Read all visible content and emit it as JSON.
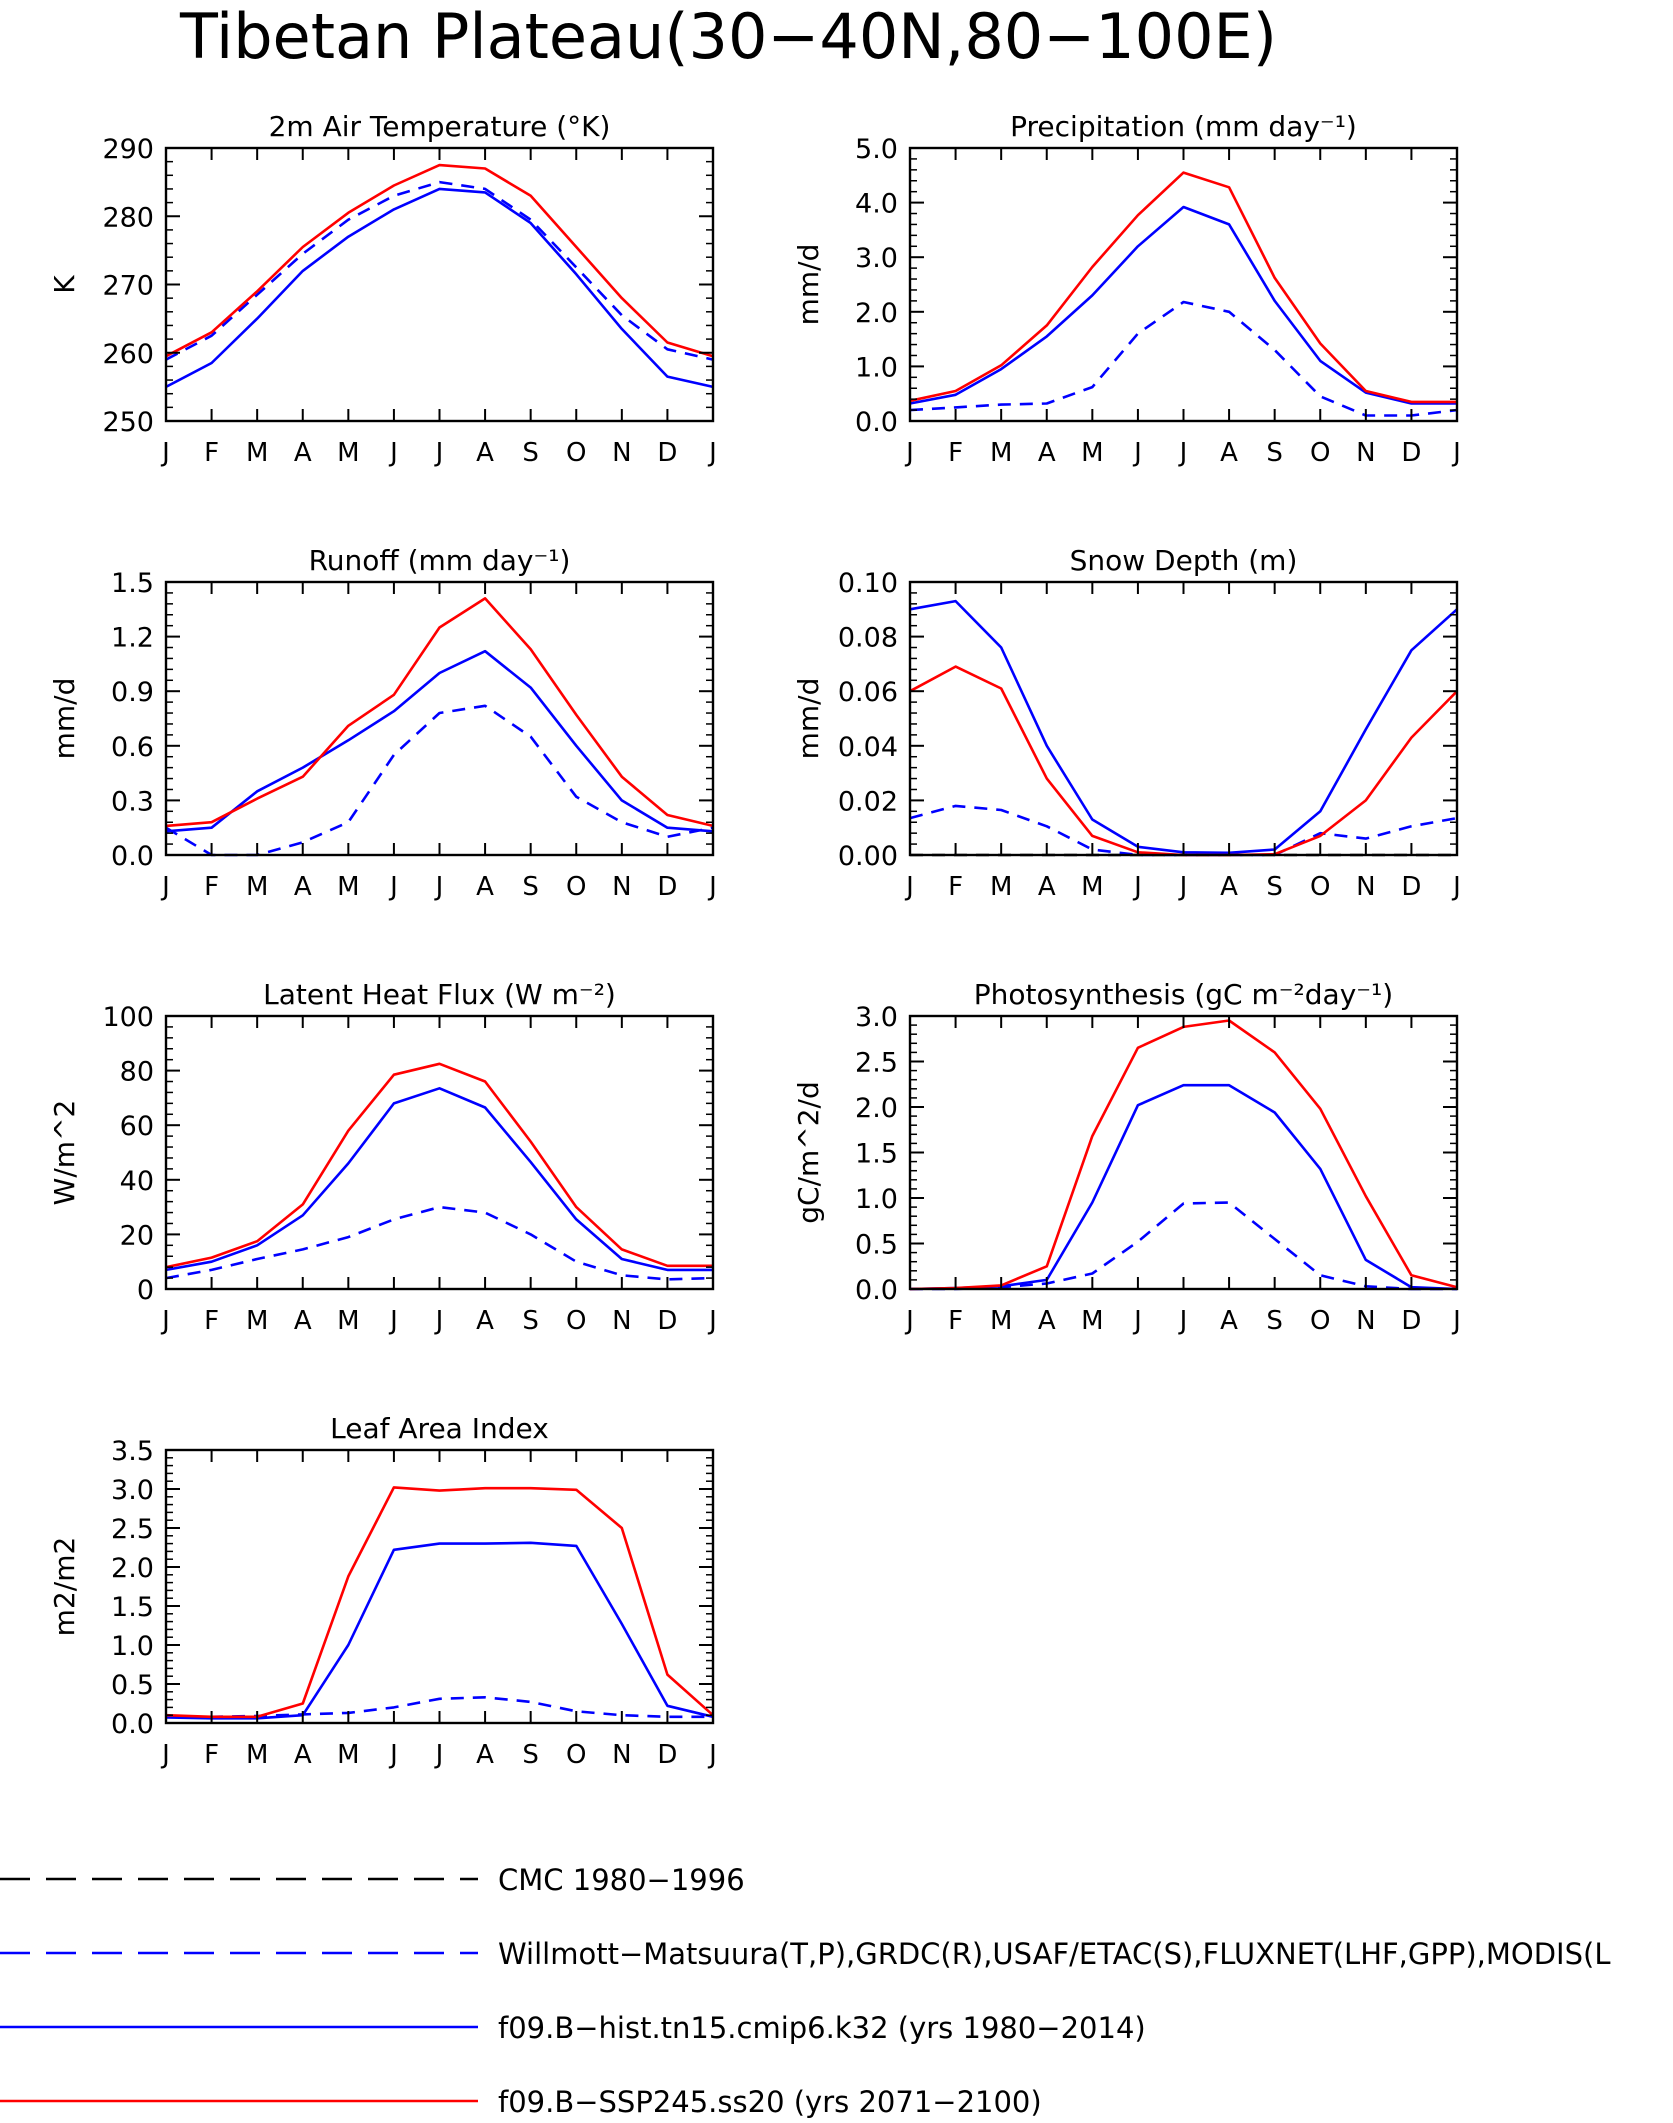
{
  "page": {
    "title": "Tibetan Plateau(30−40N,80−100E)"
  },
  "colors": {
    "obs": "#0000ff",
    "hist": "#0000ff",
    "ssp": "#ff0000",
    "cmc": "#000000"
  },
  "months": [
    "J",
    "F",
    "M",
    "A",
    "M",
    "J",
    "J",
    "A",
    "S",
    "O",
    "N",
    "D",
    "J"
  ],
  "legend": [
    {
      "label": "CMC 1980−1996",
      "color": "#000000",
      "dash": true
    },
    {
      "label": "Willmott−Matsuura(T,P),GRDC(R),USAF/ETAC(S),FLUXNET(LHF,GPP),MODIS(L",
      "color": "#0000ff",
      "dash": true
    },
    {
      "label": "f09.B−hist.tn15.cmip6.k32 (yrs 1980−2014)",
      "color": "#0000ff",
      "dash": false
    },
    {
      "label": "f09.B−SSP245.ss20 (yrs 2071−2100)",
      "color": "#ff0000",
      "dash": false
    }
  ],
  "chart_data": [
    {
      "type": "line",
      "title": "2m Air Temperature (°K)",
      "ylabel": "K",
      "ylim": [
        250,
        290
      ],
      "yticks": [
        "250",
        "260",
        "270",
        "280",
        "290"
      ],
      "categories": [
        "J",
        "F",
        "M",
        "A",
        "M",
        "J",
        "J",
        "A",
        "S",
        "O",
        "N",
        "D",
        "J"
      ],
      "series": [
        {
          "name": "Willmott−Matsuura(T,P),GRDC(R),USAF/ETAC(S),FLUXNET(LHF,GPP),MODIS(L",
          "style": "dashed",
          "color": "#0000ff",
          "values": [
            259,
            262.5,
            268.5,
            274.5,
            279.5,
            283,
            285,
            284,
            279.5,
            272.5,
            265.5,
            260.5,
            259
          ]
        },
        {
          "name": "f09.B−hist.tn15.cmip6.k32 (yrs 1980−2014)",
          "style": "solid",
          "color": "#0000ff",
          "values": [
            255,
            258.5,
            265,
            272,
            277,
            281,
            284,
            283.5,
            279,
            271.5,
            263.5,
            256.5,
            255
          ]
        },
        {
          "name": "f09.B−SSP245.ss20 (yrs 2071−2100)",
          "style": "solid",
          "color": "#ff0000",
          "values": [
            259.5,
            263,
            269,
            275.5,
            280.5,
            284.5,
            287.5,
            287,
            283,
            275.5,
            268,
            261.5,
            259.5
          ]
        }
      ]
    },
    {
      "type": "line",
      "title": "Precipitation (mm day⁻¹)",
      "ylabel": "mm/d",
      "ylim": [
        0,
        5
      ],
      "yticks": [
        "0.0",
        "1.0",
        "2.0",
        "3.0",
        "4.0",
        "5.0"
      ],
      "categories": [
        "J",
        "F",
        "M",
        "A",
        "M",
        "J",
        "J",
        "A",
        "S",
        "O",
        "N",
        "D",
        "J"
      ],
      "series": [
        {
          "name": "Willmott−Matsuura(T,P),GRDC(R),USAF/ETAC(S),FLUXNET(LHF,GPP),MODIS(L",
          "style": "dashed",
          "color": "#0000ff",
          "values": [
            0.2,
            0.25,
            0.3,
            0.32,
            0.62,
            1.6,
            2.18,
            2.0,
            1.3,
            0.45,
            0.1,
            0.1,
            0.2
          ]
        },
        {
          "name": "f09.B−hist.tn15.cmip6.k32 (yrs 1980−2014)",
          "style": "solid",
          "color": "#0000ff",
          "values": [
            0.32,
            0.48,
            0.95,
            1.55,
            2.3,
            3.2,
            3.92,
            3.6,
            2.2,
            1.1,
            0.52,
            0.32,
            0.32
          ]
        },
        {
          "name": "f09.B−SSP245.ss20 (yrs 2071−2100)",
          "style": "solid",
          "color": "#ff0000",
          "values": [
            0.37,
            0.55,
            1.02,
            1.75,
            2.82,
            3.77,
            4.55,
            4.28,
            2.62,
            1.42,
            0.55,
            0.35,
            0.35
          ]
        }
      ]
    },
    {
      "type": "line",
      "title": "Runoff (mm day⁻¹)",
      "ylabel": "mm/d",
      "ylim": [
        0,
        1.5
      ],
      "yticks": [
        "0.0",
        "0.3",
        "0.6",
        "0.9",
        "1.2",
        "1.5"
      ],
      "categories": [
        "J",
        "F",
        "M",
        "A",
        "M",
        "J",
        "J",
        "A",
        "S",
        "O",
        "N",
        "D",
        "J"
      ],
      "series": [
        {
          "name": "Willmott−Matsuura(T,P),GRDC(R),USAF/ETAC(S),FLUXNET(LHF,GPP),MODIS(L",
          "style": "dashed",
          "color": "#0000ff",
          "values": [
            0.15,
            0.0,
            0.0,
            0.07,
            0.18,
            0.55,
            0.78,
            0.82,
            0.65,
            0.32,
            0.18,
            0.1,
            0.15
          ]
        },
        {
          "name": "f09.B−hist.tn15.cmip6.k32 (yrs 1980−2014)",
          "style": "solid",
          "color": "#0000ff",
          "values": [
            0.13,
            0.15,
            0.35,
            0.48,
            0.63,
            0.79,
            1.0,
            1.12,
            0.92,
            0.6,
            0.3,
            0.15,
            0.13
          ]
        },
        {
          "name": "f09.B−SSP245.ss20 (yrs 2071−2100)",
          "style": "solid",
          "color": "#ff0000",
          "values": [
            0.16,
            0.18,
            0.31,
            0.43,
            0.71,
            0.88,
            1.25,
            1.41,
            1.13,
            0.77,
            0.43,
            0.22,
            0.16
          ]
        }
      ]
    },
    {
      "type": "line",
      "title": "Snow Depth (m)",
      "ylabel": "mm/d",
      "ylim": [
        0,
        0.1
      ],
      "yticks": [
        "0.00",
        "0.02",
        "0.04",
        "0.06",
        "0.08",
        "0.10"
      ],
      "categories": [
        "J",
        "F",
        "M",
        "A",
        "M",
        "J",
        "J",
        "A",
        "S",
        "O",
        "N",
        "D",
        "J"
      ],
      "series": [
        {
          "name": "CMC 1980−1996",
          "style": "dashed",
          "color": "#000000",
          "values": [
            0,
            0,
            0,
            0,
            0,
            0,
            0,
            0,
            0,
            0,
            0,
            0,
            0
          ]
        },
        {
          "name": "Willmott−Matsuura(T,P),GRDC(R),USAF/ETAC(S),FLUXNET(LHF,GPP),MODIS(L",
          "style": "dashed",
          "color": "#0000ff",
          "values": [
            0.0135,
            0.018,
            0.0165,
            0.0105,
            0.002,
            0.0,
            0.0,
            0.0,
            0.0,
            0.008,
            0.006,
            0.0105,
            0.0135
          ]
        },
        {
          "name": "f09.B−hist.tn15.cmip6.k32 (yrs 1980−2014)",
          "style": "solid",
          "color": "#0000ff",
          "values": [
            0.09,
            0.093,
            0.076,
            0.04,
            0.013,
            0.003,
            0.001,
            0.0008,
            0.002,
            0.016,
            0.046,
            0.075,
            0.09
          ]
        },
        {
          "name": "f09.B−SSP245.ss20 (yrs 2071−2100)",
          "style": "solid",
          "color": "#ff0000",
          "values": [
            0.06,
            0.069,
            0.061,
            0.028,
            0.007,
            0.001,
            0.0,
            0.0,
            0.0003,
            0.007,
            0.02,
            0.043,
            0.06
          ]
        }
      ]
    },
    {
      "type": "line",
      "title": "Latent Heat Flux (W m⁻²)",
      "ylabel": "W/m^2",
      "ylim": [
        0,
        100
      ],
      "yticks": [
        "0",
        "20",
        "40",
        "60",
        "80",
        "100"
      ],
      "categories": [
        "J",
        "F",
        "M",
        "A",
        "M",
        "J",
        "J",
        "A",
        "S",
        "O",
        "N",
        "D",
        "J"
      ],
      "series": [
        {
          "name": "Willmott−Matsuura(T,P),GRDC(R),USAF/ETAC(S),FLUXNET(LHF,GPP),MODIS(L",
          "style": "dashed",
          "color": "#0000ff",
          "values": [
            4,
            7,
            11,
            14.5,
            19,
            25.5,
            30,
            28,
            20,
            10,
            5,
            3.5,
            4
          ]
        },
        {
          "name": "f09.B−hist.tn15.cmip6.k32 (yrs 1980−2014)",
          "style": "solid",
          "color": "#0000ff",
          "values": [
            7,
            10,
            16,
            27,
            46,
            68,
            73.5,
            66.5,
            46.5,
            25.5,
            11,
            7,
            7
          ]
        },
        {
          "name": "f09.B−SSP245.ss20 (yrs 2071−2100)",
          "style": "solid",
          "color": "#ff0000",
          "values": [
            8,
            11.5,
            17.5,
            31,
            58,
            78.5,
            82.5,
            76,
            54,
            30,
            14.5,
            8.5,
            8.5
          ]
        }
      ]
    },
    {
      "type": "line",
      "title": "Photosynthesis (gC m⁻²day⁻¹)",
      "ylabel": "gC/m^2/d",
      "ylim": [
        0,
        3
      ],
      "yticks": [
        "0.0",
        "0.5",
        "1.0",
        "1.5",
        "2.0",
        "2.5",
        "3.0"
      ],
      "categories": [
        "J",
        "F",
        "M",
        "A",
        "M",
        "J",
        "J",
        "A",
        "S",
        "O",
        "N",
        "D",
        "J"
      ],
      "series": [
        {
          "name": "Willmott−Matsuura(T,P),GRDC(R),USAF/ETAC(S),FLUXNET(LHF,GPP),MODIS(L",
          "style": "dashed",
          "color": "#0000ff",
          "values": [
            0.0,
            0.0,
            0.02,
            0.06,
            0.17,
            0.52,
            0.94,
            0.95,
            0.55,
            0.15,
            0.03,
            0.0,
            0.0
          ]
        },
        {
          "name": "f09.B−hist.tn15.cmip6.k32 (yrs 1980−2014)",
          "style": "solid",
          "color": "#0000ff",
          "values": [
            0.0,
            0.01,
            0.03,
            0.1,
            0.95,
            2.02,
            2.24,
            2.24,
            1.94,
            1.32,
            0.32,
            0.02,
            0.0
          ]
        },
        {
          "name": "f09.B−SSP245.ss20 (yrs 2071−2100)",
          "style": "solid",
          "color": "#ff0000",
          "values": [
            0.0,
            0.01,
            0.04,
            0.25,
            1.68,
            2.65,
            2.88,
            2.95,
            2.6,
            1.98,
            1.02,
            0.15,
            0.02
          ]
        }
      ]
    },
    {
      "type": "line",
      "title": "Leaf Area Index",
      "ylabel": "m2/m2",
      "ylim": [
        0,
        3.5
      ],
      "yticks": [
        "0.0",
        "0.5",
        "1.0",
        "1.5",
        "2.0",
        "2.5",
        "3.0",
        "3.5"
      ],
      "categories": [
        "J",
        "F",
        "M",
        "A",
        "M",
        "J",
        "J",
        "A",
        "S",
        "O",
        "N",
        "D",
        "J"
      ],
      "series": [
        {
          "name": "Willmott−Matsuura(T,P),GRDC(R),USAF/ETAC(S),FLUXNET(LHF,GPP),MODIS(L",
          "style": "dashed",
          "color": "#0000ff",
          "values": [
            0.08,
            0.08,
            0.09,
            0.11,
            0.13,
            0.2,
            0.31,
            0.33,
            0.27,
            0.15,
            0.1,
            0.08,
            0.08
          ]
        },
        {
          "name": "f09.B−hist.tn15.cmip6.k32 (yrs 1980−2014)",
          "style": "solid",
          "color": "#0000ff",
          "values": [
            0.07,
            0.06,
            0.06,
            0.1,
            1.0,
            2.22,
            2.3,
            2.3,
            2.31,
            2.27,
            1.27,
            0.22,
            0.08
          ]
        },
        {
          "name": "f09.B−SSP245.ss20 (yrs 2071−2100)",
          "style": "solid",
          "color": "#ff0000",
          "values": [
            0.1,
            0.08,
            0.08,
            0.25,
            1.88,
            3.02,
            2.98,
            3.01,
            3.01,
            2.99,
            2.5,
            0.62,
            0.1
          ]
        }
      ]
    }
  ]
}
